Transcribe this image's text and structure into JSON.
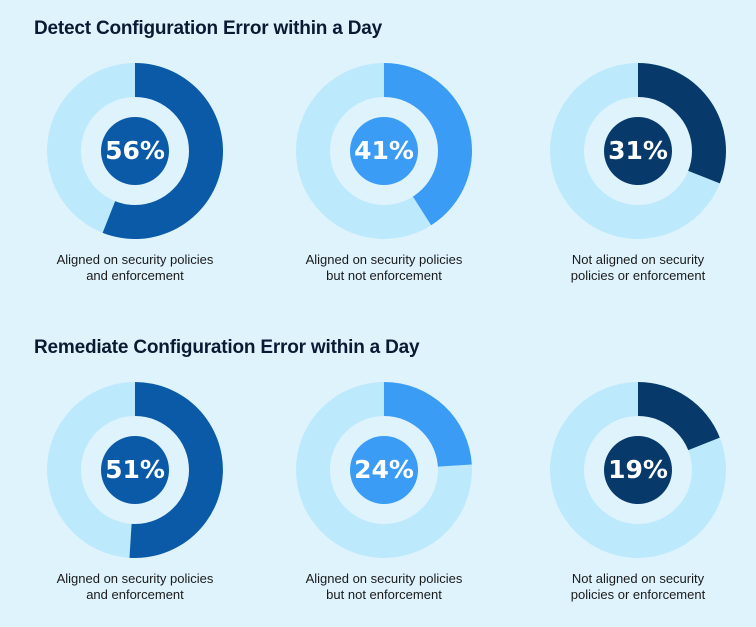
{
  "colors": {
    "background": "#dff3fd",
    "remainder": "#bde9fc",
    "inner_ring": "#dff3fd",
    "series": [
      "#0b5aa7",
      "#3b9cf5",
      "#073a6b"
    ]
  },
  "chart_data": [
    {
      "type": "pie",
      "title": "Detect Configuration Error within a Day",
      "slices": [
        {
          "label": "Aligned on security policies\nand enforcement",
          "value": 56,
          "display": "56%",
          "color": "#0b5aa7"
        },
        {
          "label": "Aligned on security policies\nbut not enforcement",
          "value": 41,
          "display": "41%",
          "color": "#3b9cf5"
        },
        {
          "label": "Not aligned on security\npolicies or enforcement",
          "value": 31,
          "display": "31%",
          "color": "#073a6b"
        }
      ]
    },
    {
      "type": "pie",
      "title": "Remediate Configuration Error within a Day",
      "slices": [
        {
          "label": "Aligned on security policies\nand enforcement",
          "value": 51,
          "display": "51%",
          "color": "#0b5aa7"
        },
        {
          "label": "Aligned on security policies\nbut not enforcement",
          "value": 24,
          "display": "24%",
          "color": "#3b9cf5"
        },
        {
          "label": "Not aligned on security\npolicies or enforcement",
          "value": 19,
          "display": "19%",
          "color": "#073a6b"
        }
      ]
    }
  ]
}
